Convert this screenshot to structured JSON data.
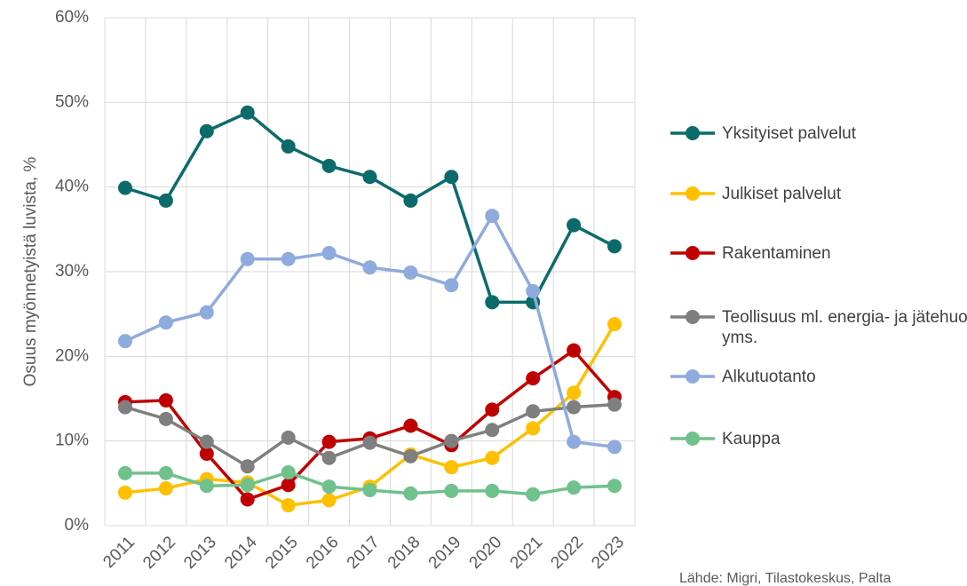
{
  "chart_data": {
    "type": "line",
    "y_axis_label": "Osuus myönnetyistä luvista, %",
    "source": "Lähde: Migri, Tilastokeskus, Palta",
    "categories": [
      "2011",
      "2012",
      "2013",
      "2014",
      "2015",
      "2016",
      "2017",
      "2018",
      "2019",
      "2020",
      "2021",
      "2022",
      "2023"
    ],
    "ylim": [
      0,
      60
    ],
    "yticks": [
      {
        "value": 0,
        "label": "0%"
      },
      {
        "value": 10,
        "label": "10%"
      },
      {
        "value": 20,
        "label": "20%"
      },
      {
        "value": 30,
        "label": "30%"
      },
      {
        "value": 40,
        "label": "40%"
      },
      {
        "value": 50,
        "label": "50%"
      },
      {
        "value": 60,
        "label": "60%"
      }
    ],
    "grid": true,
    "legend": "right",
    "series": [
      {
        "name": "Yksityiset palvelut",
        "color": "#0b6b6b",
        "values": [
          39.9,
          38.4,
          46.6,
          48.8,
          44.8,
          42.5,
          41.2,
          38.4,
          41.2,
          26.4,
          26.4,
          35.5,
          33.0
        ]
      },
      {
        "name": "Julkiset palvelut",
        "color": "#ffc000",
        "values": [
          3.9,
          4.4,
          5.5,
          5.1,
          2.4,
          3.0,
          4.6,
          8.4,
          6.9,
          8.0,
          11.5,
          15.7,
          23.8
        ]
      },
      {
        "name": "Rakentaminen",
        "color": "#c00000",
        "values": [
          14.6,
          14.8,
          8.5,
          3.1,
          4.8,
          9.9,
          10.3,
          11.8,
          9.5,
          13.7,
          17.4,
          20.7,
          15.2
        ]
      },
      {
        "name": "Teollisuus ml. energia- ja jätehuolto yms.",
        "color": "#7f7f7f",
        "values": [
          14.0,
          12.6,
          9.9,
          7.0,
          10.4,
          8.0,
          9.8,
          8.2,
          10.0,
          11.3,
          13.5,
          14.0,
          14.3
        ]
      },
      {
        "name": "Alkutuotanto",
        "color": "#8faadc",
        "values": [
          21.8,
          24.0,
          25.2,
          31.5,
          31.5,
          32.2,
          30.5,
          29.9,
          28.4,
          36.6,
          27.7,
          9.9,
          9.3
        ]
      },
      {
        "name": "Kauppa",
        "color": "#70c18c",
        "values": [
          6.2,
          6.2,
          4.7,
          4.8,
          6.3,
          4.6,
          4.2,
          3.8,
          4.1,
          4.1,
          3.7,
          4.5,
          4.7
        ]
      }
    ]
  }
}
